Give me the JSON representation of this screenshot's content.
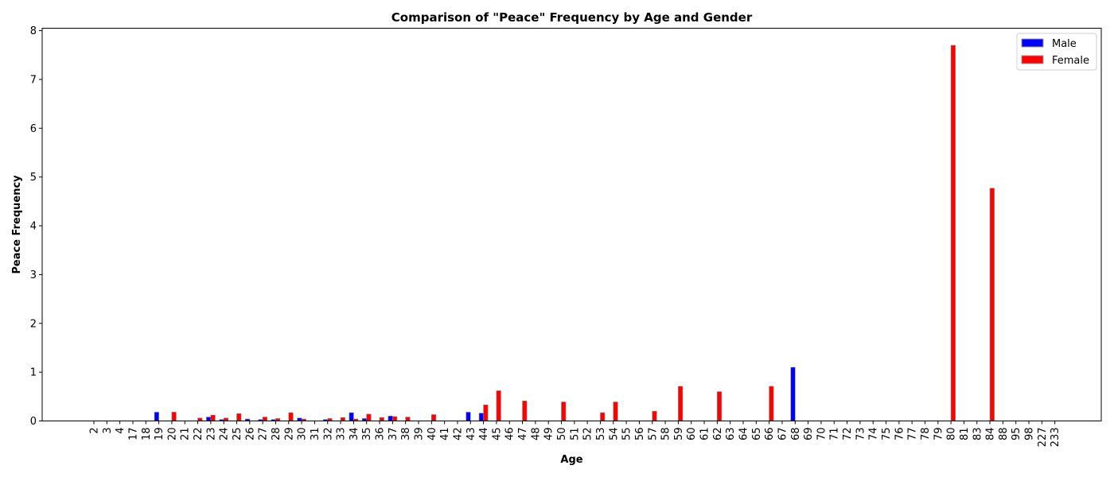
{
  "chart_data": {
    "type": "bar",
    "title": "Comparison of \"Peace\" Frequency by Age and Gender",
    "xlabel": "Age",
    "ylabel": "Peace Frequency",
    "ylim": [
      0,
      8.05
    ],
    "yticks": [
      0,
      1,
      2,
      3,
      4,
      5,
      6,
      7,
      8
    ],
    "legend_position": "top-right",
    "grid": false,
    "categories": [
      "2",
      "3",
      "4",
      "17",
      "18",
      "19",
      "20",
      "21",
      "22",
      "23",
      "24",
      "25",
      "26",
      "27",
      "28",
      "29",
      "30",
      "31",
      "32",
      "33",
      "34",
      "35",
      "36",
      "37",
      "38",
      "39",
      "40",
      "41",
      "42",
      "43",
      "44",
      "45",
      "46",
      "47",
      "48",
      "49",
      "50",
      "51",
      "52",
      "53",
      "54",
      "55",
      "56",
      "57",
      "58",
      "59",
      "60",
      "61",
      "62",
      "63",
      "64",
      "65",
      "66",
      "67",
      "68",
      "69",
      "70",
      "71",
      "72",
      "73",
      "74",
      "75",
      "76",
      "77",
      "78",
      "79",
      "80",
      "81",
      "83",
      "84",
      "88",
      "95",
      "98",
      "227",
      "233"
    ],
    "series": [
      {
        "name": "Male",
        "color": "#0000ff",
        "values": [
          0,
          0,
          0,
          0,
          0,
          0.18,
          0,
          0,
          0,
          0.08,
          0.03,
          0,
          0.04,
          0.03,
          0.03,
          0,
          0.06,
          0,
          0.03,
          0,
          0.17,
          0.05,
          0,
          0.1,
          0,
          0,
          0,
          0,
          0,
          0.18,
          0.16,
          0,
          0,
          0,
          0,
          0,
          0,
          0,
          0,
          0,
          0,
          0,
          0,
          0,
          0,
          0,
          0,
          0,
          0,
          0,
          0,
          0,
          0,
          0,
          1.1,
          0,
          0,
          0,
          0,
          0,
          0,
          0,
          0,
          0,
          0,
          0,
          0,
          0,
          0,
          0,
          0,
          0,
          0,
          0,
          0
        ]
      },
      {
        "name": "Female",
        "color": "#ff0000",
        "values": [
          0,
          0,
          0,
          0,
          0,
          0,
          0.18,
          0,
          0.06,
          0.12,
          0.06,
          0.15,
          0,
          0.08,
          0.05,
          0.17,
          0.04,
          0,
          0.05,
          0.07,
          0.04,
          0.14,
          0.07,
          0.09,
          0.08,
          0,
          0.13,
          0,
          0,
          0,
          0.33,
          0.62,
          0,
          0.41,
          0,
          0,
          0.39,
          0,
          0,
          0.17,
          0.39,
          0,
          0,
          0.2,
          0,
          0.71,
          0,
          0,
          0.6,
          0,
          0,
          0,
          0.71,
          0,
          0,
          0,
          0,
          0,
          0,
          0,
          0,
          0,
          0,
          0,
          0,
          0,
          7.7,
          0,
          0,
          4.77,
          0,
          0,
          0,
          0,
          0
        ]
      }
    ]
  }
}
